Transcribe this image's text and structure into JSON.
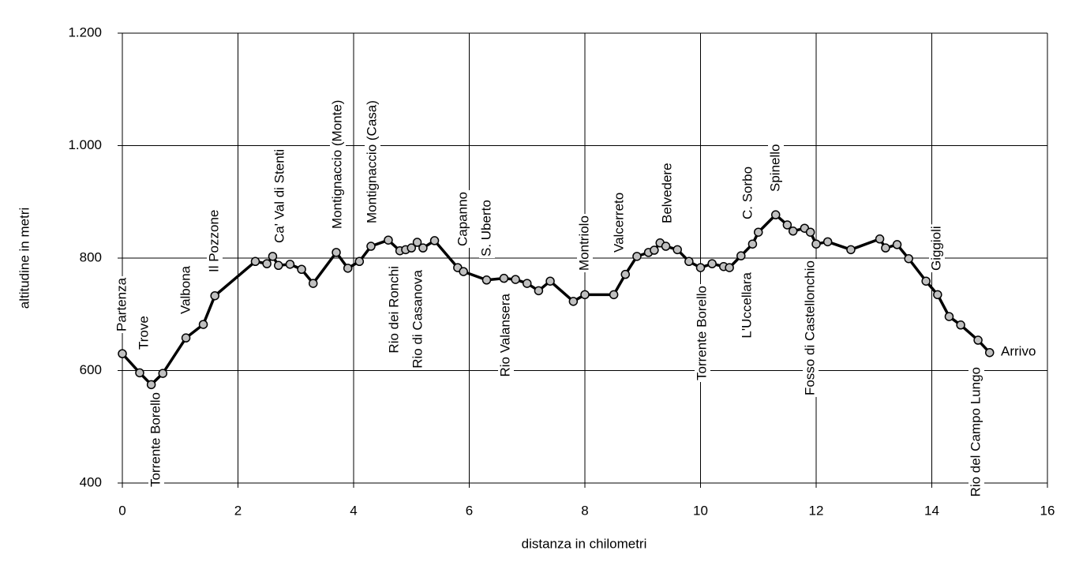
{
  "chart_data": {
    "type": "line",
    "x_label": "distanza in chilometri",
    "y_label": "altitudine  in metri",
    "x": [
      0,
      0.3,
      0.5,
      0.7,
      1.1,
      1.4,
      1.6,
      2.3,
      2.5,
      2.6,
      2.7,
      2.9,
      3.1,
      3.3,
      3.7,
      3.9,
      4.1,
      4.3,
      4.6,
      4.8,
      4.9,
      5.0,
      5.1,
      5.2,
      5.4,
      5.8,
      5.9,
      6.3,
      6.6,
      6.8,
      7.0,
      7.2,
      7.4,
      7.8,
      8.0,
      8.5,
      8.7,
      8.9,
      9.1,
      9.2,
      9.3,
      9.4,
      9.6,
      9.8,
      10.0,
      10.2,
      10.4,
      10.5,
      10.7,
      10.9,
      11.0,
      11.3,
      11.5,
      11.6,
      11.8,
      11.9,
      12.0,
      12.2,
      12.6,
      13.1,
      13.2,
      13.4,
      13.6,
      13.9,
      14.1,
      14.3,
      14.5,
      14.8,
      15.0
    ],
    "series": [
      {
        "color": "#000000",
        "marker_color": "#c0c0c0",
        "values": [
          630,
          596,
          575,
          595,
          658,
          682,
          733,
          794,
          790,
          803,
          787,
          789,
          780,
          755,
          810,
          782,
          794,
          821,
          832,
          813,
          815,
          818,
          828,
          818,
          831,
          783,
          776,
          761,
          764,
          762,
          755,
          742,
          759,
          723,
          735,
          735,
          771,
          803,
          810,
          814,
          827,
          821,
          815,
          794,
          783,
          790,
          785,
          783,
          804,
          825,
          846,
          877,
          859,
          848,
          853,
          846,
          825,
          829,
          815,
          834,
          818,
          824,
          799,
          759,
          735,
          696,
          681,
          654,
          632
        ]
      }
    ],
    "annotations": [
      "Partenza",
      "Trove",
      "Torrente Borello",
      "Valbona",
      "Il Pozzone",
      "Ca' Val di Stenti",
      "Montignaccio (Monte)",
      "Montignaccio (Casa)",
      "Rio dei Ronchi",
      "Rio di Casanova",
      "Capanno",
      "S. Uberto",
      "Rio Valansera",
      "Montriolo",
      "Valcerreto",
      "Belvedere",
      "Torrente Borello",
      "C. Sorbo",
      "Spinello",
      "L'Uccellara",
      "Fosso di Castellonchio",
      "Giggioli",
      "Rio del Campo Lungo",
      "Arrivo"
    ],
    "xlim": [
      0,
      16
    ],
    "xticks": [
      0,
      2,
      4,
      6,
      8,
      10,
      12,
      14,
      16
    ],
    "ylim": [
      400,
      1200
    ],
    "yticks": [
      400,
      600,
      800,
      {
        "value": 1000,
        "label": "1.000"
      },
      {
        "value": 1200,
        "label": "1.200"
      }
    ],
    "grid": true
  }
}
